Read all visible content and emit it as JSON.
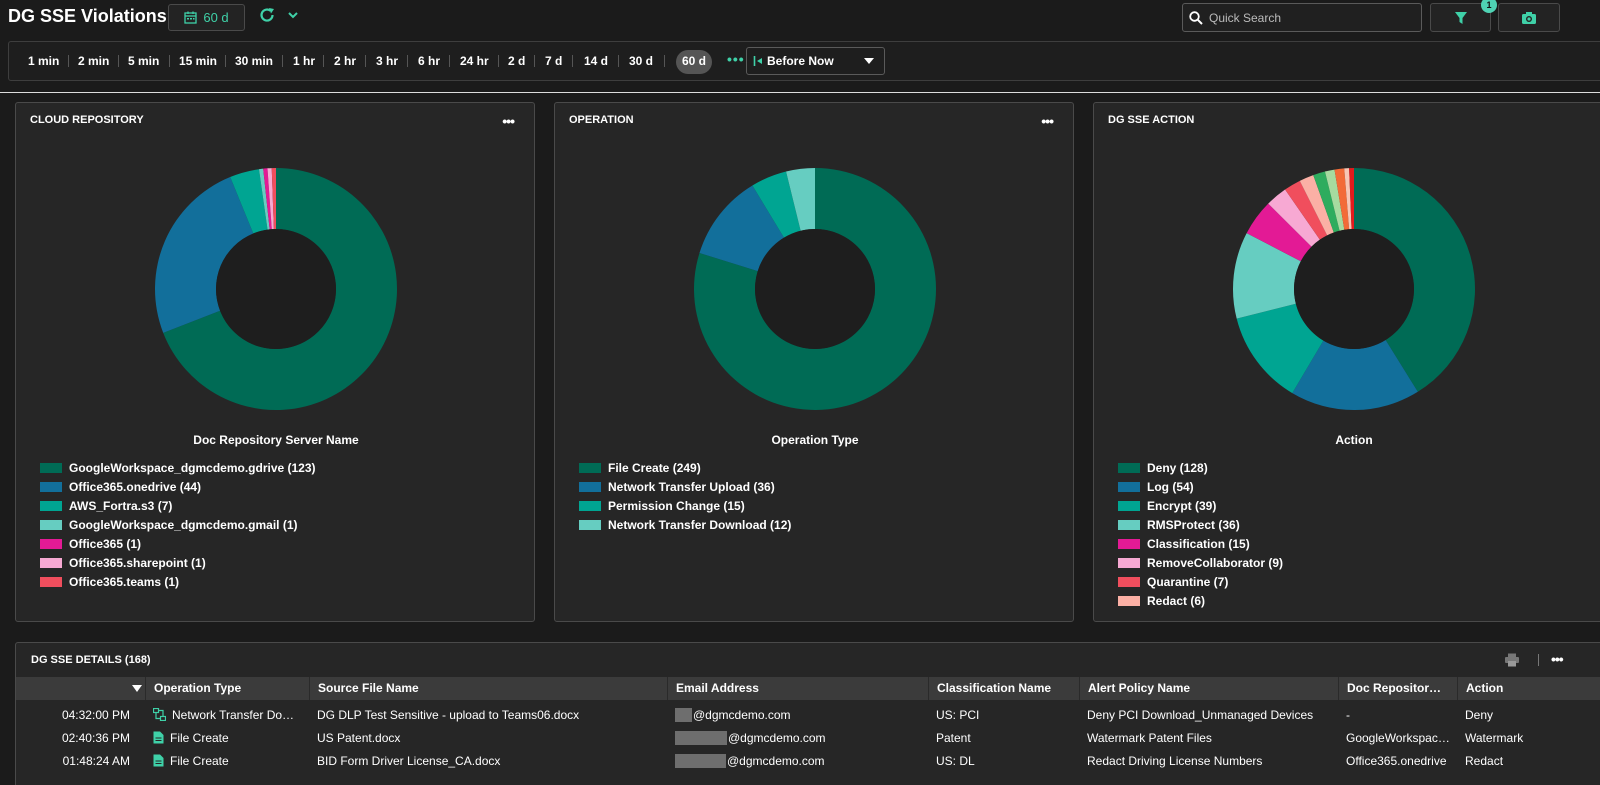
{
  "header": {
    "title": "DG SSE Violations",
    "range_label": "60 d",
    "search_placeholder": "Quick Search",
    "filter_count": "1"
  },
  "timebar": {
    "options": [
      "1 min",
      "2 min",
      "5 min",
      "15 min",
      "30 min",
      "1 hr",
      "2 hr",
      "3 hr",
      "6 hr",
      "24 hr",
      "2 d",
      "7 d",
      "14 d",
      "30 d",
      "60 d"
    ],
    "selected": "60 d",
    "more": "•••",
    "anchor_label": "Before Now"
  },
  "panels": [
    {
      "title": "CLOUD REPOSITORY",
      "menu": "•••",
      "axis_label": "Doc Repository Server Name",
      "legend": [
        {
          "label": "GoogleWorkspace_dgmcdemo.gdrive (123)",
          "value": 123,
          "color": "#006b55"
        },
        {
          "label": "Office365.onedrive (44)",
          "value": 44,
          "color": "#126f9b"
        },
        {
          "label": "AWS_Fortra.s3 (7)",
          "value": 7,
          "color": "#00a592"
        },
        {
          "label": "GoogleWorkspace_dgmcdemo.gmail (1)",
          "value": 1,
          "color": "#66cdc1"
        },
        {
          "label": "Office365 (1)",
          "value": 1,
          "color": "#e31a95"
        },
        {
          "label": "Office365.sharepoint (1)",
          "value": 1,
          "color": "#f7a9d3"
        },
        {
          "label": "Office365.teams (1)",
          "value": 1,
          "color": "#f04e5d"
        }
      ]
    },
    {
      "title": "OPERATION",
      "menu": "•••",
      "axis_label": "Operation Type",
      "legend": [
        {
          "label": "File Create (249)",
          "value": 249,
          "color": "#006b55"
        },
        {
          "label": "Network Transfer Upload (36)",
          "value": 36,
          "color": "#126f9b"
        },
        {
          "label": "Permission Change (15)",
          "value": 15,
          "color": "#00a592"
        },
        {
          "label": "Network Transfer Download (12)",
          "value": 12,
          "color": "#66cdc1"
        }
      ]
    },
    {
      "title": "DG SSE ACTION",
      "menu": "",
      "axis_label": "Action",
      "legend": [
        {
          "label": "Deny (128)",
          "value": 128,
          "color": "#006b55"
        },
        {
          "label": "Log (54)",
          "value": 54,
          "color": "#126f9b"
        },
        {
          "label": "Encrypt (39)",
          "value": 39,
          "color": "#00a592"
        },
        {
          "label": "RMSProtect (36)",
          "value": 36,
          "color": "#66cdc1"
        },
        {
          "label": "Classification (15)",
          "value": 15,
          "color": "#e31a95"
        },
        {
          "label": "RemoveCollaborator (9)",
          "value": 9,
          "color": "#f7a9d3"
        },
        {
          "label": "Quarantine (7)",
          "value": 7,
          "color": "#f04e5d"
        },
        {
          "label": "Redact (6)",
          "value": 6,
          "color": "#fbb0a5"
        }
      ],
      "unlabeled_slices": [
        {
          "value": 5,
          "color": "#2eac5e"
        },
        {
          "value": 4,
          "color": "#a6dba0"
        },
        {
          "value": 4,
          "color": "#f26b38"
        },
        {
          "value": 2,
          "color": "#f7c6b5"
        },
        {
          "value": 2,
          "color": "#e31a1c"
        }
      ]
    }
  ],
  "details": {
    "title": "DG SSE DETAILS (168)",
    "menu": "•••",
    "columns": [
      "",
      "Operation Type",
      "Source File Name",
      "Email Address",
      "Classification Name",
      "Alert Policy Name",
      "Doc Repositor…",
      "Action"
    ],
    "rows": [
      {
        "time": "04:32:00 PM",
        "op": "Network Transfer Do…",
        "op_icon": "network-transfer-icon",
        "file": "DG DLP Test Sensitive - upload to Teams06.docx",
        "email": "@dgmcdemo.com",
        "classification": "US: PCI",
        "policy": "Deny PCI Download_Unmanaged Devices",
        "repo": "-",
        "action": "Deny"
      },
      {
        "time": "02:40:36 PM",
        "op": "File Create",
        "op_icon": "file-icon",
        "file": "US Patent.docx",
        "email": "@dgmcdemo.com",
        "classification": "Patent",
        "policy": "Watermark Patent Files",
        "repo": "GoogleWorkspac…",
        "action": "Watermark"
      },
      {
        "time": "01:48:24 AM",
        "op": "File Create",
        "op_icon": "file-icon",
        "file": "BID Form Driver License_CA.docx",
        "email": "@dgmcdemo.com",
        "classification": "US: DL",
        "policy": "Redact Driving License Numbers",
        "repo": "Office365.onedrive",
        "action": "Redact"
      }
    ]
  },
  "colors": {
    "accent": "#3fd1a8",
    "background": "#1b1b1b",
    "panel": "#262626"
  }
}
